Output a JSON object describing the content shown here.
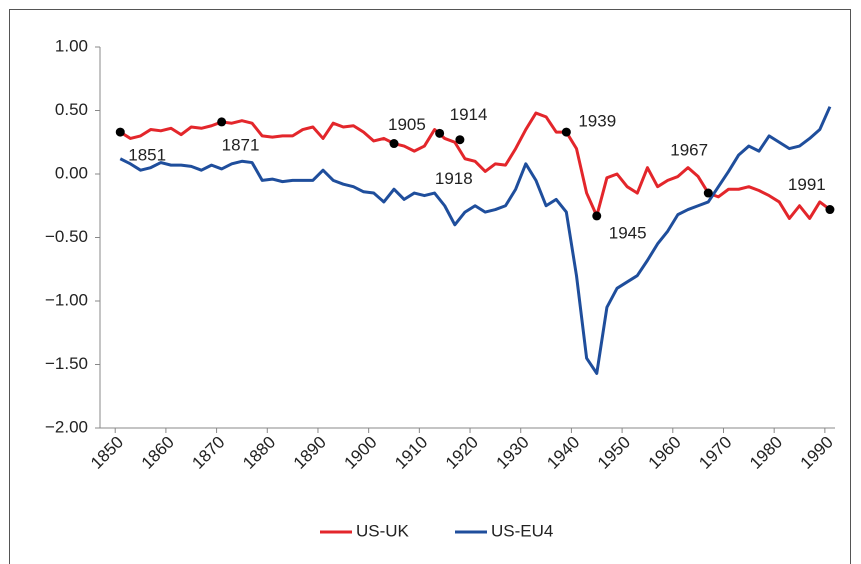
{
  "chart_data": {
    "type": "line",
    "x": [
      1851,
      1853,
      1855,
      1857,
      1859,
      1861,
      1863,
      1865,
      1867,
      1869,
      1871,
      1873,
      1875,
      1877,
      1879,
      1881,
      1883,
      1885,
      1887,
      1889,
      1891,
      1893,
      1895,
      1897,
      1899,
      1901,
      1903,
      1905,
      1907,
      1909,
      1911,
      1913,
      1915,
      1917,
      1919,
      1921,
      1923,
      1925,
      1927,
      1929,
      1931,
      1933,
      1935,
      1937,
      1939,
      1941,
      1943,
      1945,
      1947,
      1949,
      1951,
      1953,
      1955,
      1957,
      1959,
      1961,
      1963,
      1965,
      1967,
      1969,
      1971,
      1973,
      1975,
      1977,
      1979,
      1981,
      1983,
      1985,
      1987,
      1989,
      1991
    ],
    "series": [
      {
        "name": "US-UK",
        "color": "#e3262b",
        "values": [
          0.33,
          0.28,
          0.3,
          0.35,
          0.34,
          0.36,
          0.31,
          0.37,
          0.36,
          0.38,
          0.41,
          0.4,
          0.42,
          0.4,
          0.3,
          0.29,
          0.3,
          0.3,
          0.35,
          0.37,
          0.28,
          0.4,
          0.37,
          0.38,
          0.33,
          0.26,
          0.28,
          0.24,
          0.22,
          0.18,
          0.22,
          0.35,
          0.28,
          0.25,
          0.12,
          0.1,
          0.02,
          0.08,
          0.07,
          0.2,
          0.35,
          0.48,
          0.45,
          0.33,
          0.33,
          0.2,
          -0.15,
          -0.33,
          -0.03,
          0.0,
          -0.1,
          -0.15,
          0.05,
          -0.1,
          -0.05,
          -0.02,
          0.05,
          -0.02,
          -0.15,
          -0.18,
          -0.12,
          -0.12,
          -0.1,
          -0.13,
          -0.17,
          -0.22,
          -0.35,
          -0.25,
          -0.35,
          -0.22,
          -0.28
        ]
      },
      {
        "name": "US-EU4",
        "color": "#1f4e9c",
        "values": [
          0.12,
          0.08,
          0.03,
          0.05,
          0.09,
          0.07,
          0.07,
          0.06,
          0.03,
          0.07,
          0.04,
          0.08,
          0.1,
          0.09,
          -0.05,
          -0.04,
          -0.06,
          -0.05,
          -0.05,
          -0.05,
          0.03,
          -0.05,
          -0.08,
          -0.1,
          -0.14,
          -0.15,
          -0.22,
          -0.12,
          -0.2,
          -0.15,
          -0.17,
          -0.15,
          -0.25,
          -0.4,
          -0.3,
          -0.25,
          -0.3,
          -0.28,
          -0.25,
          -0.12,
          0.08,
          -0.05,
          -0.25,
          -0.2,
          -0.3,
          -0.8,
          -1.45,
          -1.57,
          -1.05,
          -0.9,
          -0.85,
          -0.8,
          -0.68,
          -0.55,
          -0.45,
          -0.32,
          -0.28,
          -0.25,
          -0.22,
          -0.1,
          0.02,
          0.15,
          0.22,
          0.18,
          0.3,
          0.25,
          0.2,
          0.22,
          0.28,
          0.35,
          0.53
        ]
      }
    ],
    "annotations": [
      {
        "label": "1851",
        "x": 1851,
        "y": 0.33
      },
      {
        "label": "1871",
        "x": 1871,
        "y": 0.41
      },
      {
        "label": "1905",
        "x": 1905,
        "y": 0.24
      },
      {
        "label": "1914",
        "x": 1914,
        "y": 0.32
      },
      {
        "label": "1918",
        "x": 1918,
        "y": 0.27
      },
      {
        "label": "1939",
        "x": 1939,
        "y": 0.33
      },
      {
        "label": "1945",
        "x": 1945,
        "y": -0.33
      },
      {
        "label": "1967",
        "x": 1967,
        "y": -0.15
      },
      {
        "label": "1991",
        "x": 1991,
        "y": -0.28
      }
    ],
    "xlim": [
      1847,
      1992
    ],
    "xticks": [
      1850,
      1860,
      1870,
      1880,
      1890,
      1900,
      1910,
      1920,
      1930,
      1940,
      1950,
      1960,
      1970,
      1980,
      1990
    ],
    "ylim": [
      -2,
      1
    ],
    "yticks": [
      {
        "value": 1,
        "label": "1.00"
      },
      {
        "value": 0.5,
        "label": "0.50"
      },
      {
        "value": 0,
        "label": "0.00"
      },
      {
        "value": -0.5,
        "label": "−0.50"
      },
      {
        "value": -1,
        "label": "−1.00"
      },
      {
        "value": -1.5,
        "label": "−1.50"
      },
      {
        "value": -2,
        "label": "−2.00"
      }
    ],
    "legend": "bottom"
  }
}
